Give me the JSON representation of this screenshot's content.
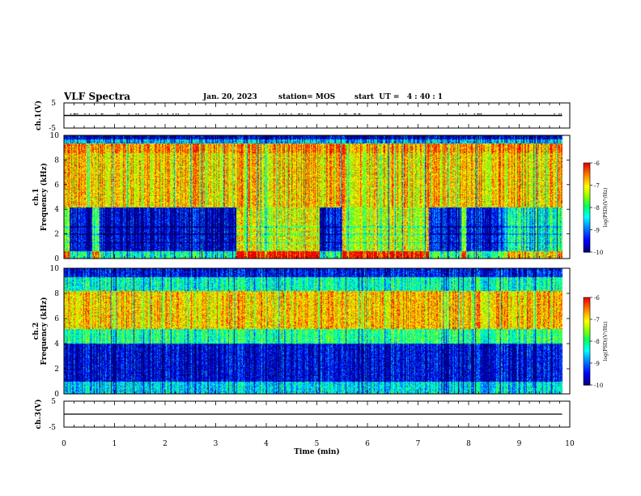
{
  "header": {
    "title": "VLF Spectra",
    "date": "Jan. 20, 2023",
    "station": "station= MOS",
    "start": "start  UT =   4 : 40 : 1"
  },
  "chart_data": [
    {
      "type": "line",
      "ylabel": "ch.1(V)",
      "ylim": [
        -5,
        5
      ],
      "yticks": [
        "5",
        "-5"
      ],
      "xlim": [
        0,
        10
      ],
      "series": [
        {
          "x": [
            0,
            9.85
          ],
          "values": [
            0,
            0
          ]
        }
      ]
    },
    {
      "type": "heatmap",
      "ylabel_lines": [
        "ch.1",
        "Frequency (kHz)"
      ],
      "ylim": [
        0,
        10
      ],
      "yticks": [
        "0",
        "2",
        "4",
        "6",
        "8",
        "10"
      ],
      "xlim": [
        0,
        10
      ],
      "data_extent_x": [
        0,
        9.85
      ],
      "intensity_bands": [
        {
          "t0": 0.0,
          "t1": 0.1,
          "low": 0.55
        },
        {
          "t0": 0.1,
          "t1": 0.55,
          "low": 0.1
        },
        {
          "t0": 0.55,
          "t1": 0.7,
          "low": 0.55
        },
        {
          "t0": 0.7,
          "t1": 3.4,
          "low": 0.1
        },
        {
          "t0": 3.4,
          "t1": 5.05,
          "low": 0.7
        },
        {
          "t0": 5.05,
          "t1": 5.5,
          "low": 0.1
        },
        {
          "t0": 5.5,
          "t1": 7.2,
          "low": 0.7
        },
        {
          "t0": 7.2,
          "t1": 7.85,
          "low": 0.15
        },
        {
          "t0": 7.85,
          "t1": 7.95,
          "low": 0.6
        },
        {
          "t0": 7.95,
          "t1": 8.7,
          "low": 0.15
        },
        {
          "t0": 8.7,
          "t1": 9.85,
          "low": 0.45
        }
      ],
      "colorbar": {
        "label": "log(PSD)(V²/Hz)",
        "ticks": [
          "-6",
          "-7",
          "-8",
          "-9",
          "-10"
        ],
        "range": [
          -10,
          -6
        ]
      }
    },
    {
      "type": "heatmap",
      "ylabel_lines": [
        "ch.2",
        "Frequency (kHz)"
      ],
      "ylim": [
        0,
        10
      ],
      "yticks": [
        "0",
        "2",
        "4",
        "6",
        "8",
        "10"
      ],
      "xlim": [
        0,
        10
      ],
      "data_extent_x": [
        0,
        9.85
      ],
      "colorbar": {
        "label": "log(PSD)(V²/Hz)",
        "ticks": [
          "-6",
          "-7",
          "-8",
          "-9",
          "-10"
        ],
        "range": [
          -10,
          -6
        ]
      }
    },
    {
      "type": "line",
      "ylabel": "ch.3(V)",
      "ylim": [
        -5,
        5
      ],
      "yticks": [
        "5",
        "-5"
      ],
      "xlim": [
        0,
        10
      ],
      "xlabel": "Time  (min)",
      "xticks": [
        "0",
        "1",
        "2",
        "3",
        "4",
        "5",
        "6",
        "7",
        "8",
        "9",
        "10"
      ],
      "series": [
        {
          "x": [
            0,
            9.85
          ],
          "values": [
            0,
            0
          ]
        }
      ]
    }
  ]
}
